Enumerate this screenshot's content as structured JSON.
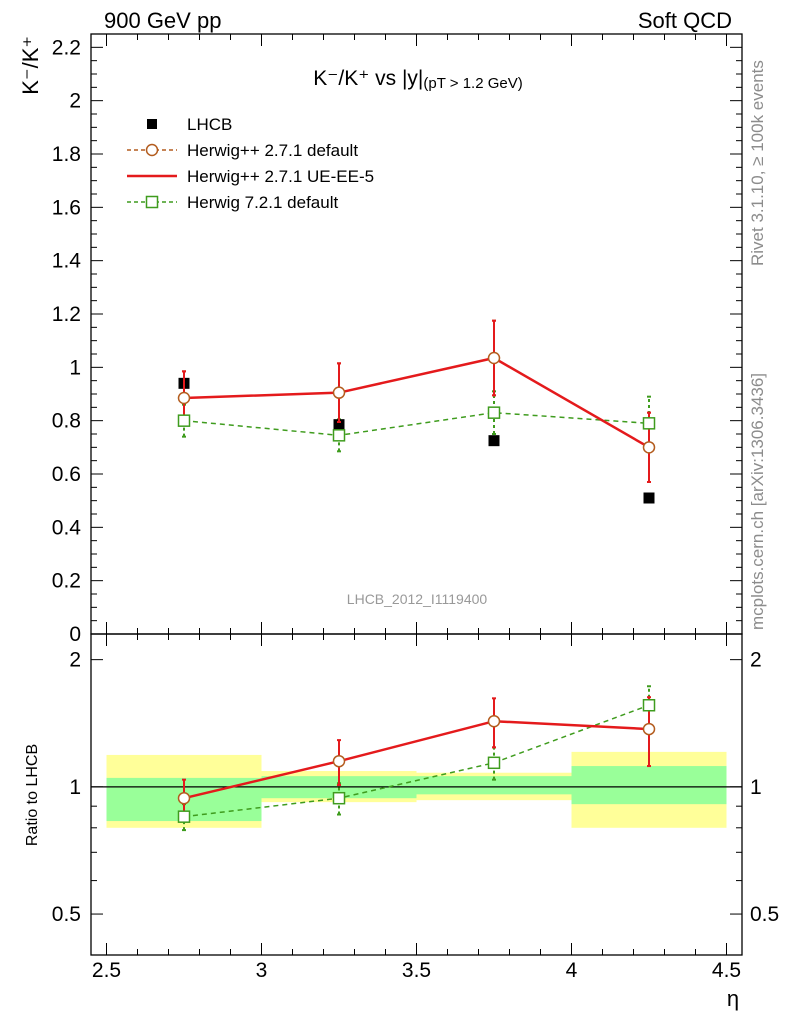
{
  "header": {
    "left": "900 GeV pp",
    "right": "Soft QCD"
  },
  "side_labels": {
    "rivet": "Rivet 3.1.10, ≥ 100k events",
    "mcplots": "mcplots.cern.ch [arXiv:1306.3436]"
  },
  "chart_data": {
    "type": "line",
    "title": "K⁻/K⁺ vs |y|",
    "title_suffix": "(p_T > 1.2 GeV)",
    "analysis_tag": "LHCB_2012_I1119400",
    "xlabel": "η",
    "ylabel": "K⁻/K⁺",
    "ratio_ylabel": "Ratio to LHCB",
    "xlim": [
      2.45,
      4.55
    ],
    "ylim": [
      0,
      2.25
    ],
    "ratio_ylim": [
      0.4,
      2.3
    ],
    "ratio_scale": "log",
    "x_ticks": [
      "2.5",
      "3",
      "3.5",
      "4",
      "4.5"
    ],
    "y_ticks": [
      "0",
      "0.2",
      "0.4",
      "0.6",
      "0.8",
      "1",
      "1.2",
      "1.4",
      "1.6",
      "1.8",
      "2",
      "2.2"
    ],
    "ratio_ticks": [
      "0.5",
      "1",
      "2"
    ],
    "grid": false,
    "legend_position": "top-left",
    "x": [
      2.75,
      3.25,
      3.75,
      4.25
    ],
    "bins": [
      [
        2.5,
        3.0
      ],
      [
        3.0,
        3.5
      ],
      [
        3.5,
        4.0
      ],
      [
        4.0,
        4.5
      ]
    ],
    "series": [
      {
        "name": "LHCB",
        "style": "data",
        "color": "#000000",
        "values": [
          0.94,
          0.785,
          0.725,
          0.51
        ],
        "band_inner": [
          [
            0.83,
            1.05
          ],
          [
            0.94,
            1.06
          ],
          [
            0.96,
            1.06
          ],
          [
            0.91,
            1.12
          ]
        ],
        "band_outer": [
          [
            0.8,
            1.19
          ],
          [
            0.92,
            1.09
          ],
          [
            0.93,
            1.08
          ],
          [
            0.8,
            1.21
          ]
        ]
      },
      {
        "name": "Herwig++ 2.7.1 default",
        "style": "dashed-circle",
        "color": "#b35c1e",
        "values": [
          0.885,
          0.905,
          1.035,
          0.7
        ],
        "err": [
          0.1,
          0.11,
          0.14,
          0.13
        ],
        "ratio": [
          0.94,
          1.15,
          1.43,
          1.37
        ],
        "ratio_err": [
          [
            0.84,
            1.04
          ],
          [
            1.01,
            1.29
          ],
          [
            1.24,
            1.62
          ],
          [
            1.12,
            1.63
          ]
        ]
      },
      {
        "name": "Herwig++ 2.7.1 UE-EE-5",
        "style": "solid",
        "color": "#e41a1c",
        "values": [
          0.885,
          0.905,
          1.035,
          0.7
        ],
        "err": [
          0.1,
          0.11,
          0.14,
          0.13
        ],
        "ratio": [
          0.94,
          1.15,
          1.43,
          1.37
        ],
        "ratio_err": [
          [
            0.84,
            1.04
          ],
          [
            1.01,
            1.29
          ],
          [
            1.24,
            1.62
          ],
          [
            1.12,
            1.63
          ]
        ]
      },
      {
        "name": "Herwig 7.2.1 default",
        "style": "dashed-square",
        "color": "#3f9c1e",
        "values": [
          0.8,
          0.745,
          0.83,
          0.79
        ],
        "err": [
          0.06,
          0.06,
          0.08,
          0.1
        ],
        "ratio": [
          0.85,
          0.94,
          1.14,
          1.56
        ],
        "ratio_err": [
          [
            0.79,
            0.91
          ],
          [
            0.86,
            1.02
          ],
          [
            1.04,
            1.24
          ],
          [
            1.38,
            1.73
          ]
        ]
      }
    ]
  }
}
